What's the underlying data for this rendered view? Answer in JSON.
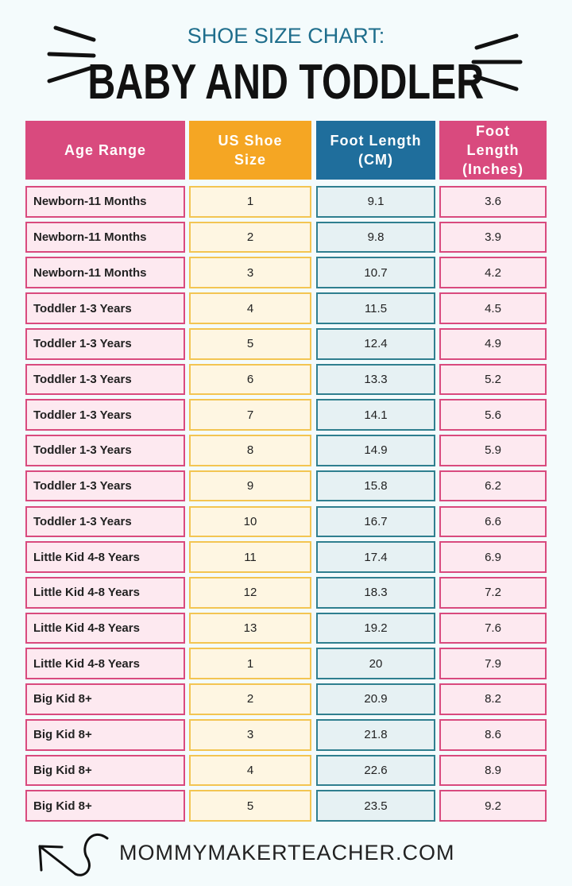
{
  "header": {
    "subtitle": "SHOE SIZE CHART:",
    "title": "BABY AND TODDLER"
  },
  "table": {
    "columns": [
      "Age Range",
      "US Shoe Size",
      "Foot Length (CM)",
      "Foot Length (Inches)"
    ],
    "rows": [
      [
        "Newborn-11 Months",
        1,
        9.1,
        3.6
      ],
      [
        "Newborn-11 Months",
        2,
        9.8,
        3.9
      ],
      [
        "Newborn-11 Months",
        3,
        10.7,
        4.2
      ],
      [
        "Toddler 1-3 Years",
        4,
        11.5,
        4.5
      ],
      [
        "Toddler 1-3 Years",
        5,
        12.4,
        4.9
      ],
      [
        "Toddler 1-3 Years",
        6,
        13.3,
        5.2
      ],
      [
        "Toddler 1-3 Years",
        7,
        14.1,
        5.6
      ],
      [
        "Toddler 1-3 Years",
        8,
        14.9,
        5.9
      ],
      [
        "Toddler 1-3 Years",
        9,
        15.8,
        6.2
      ],
      [
        "Toddler 1-3 Years",
        10,
        16.7,
        6.6
      ],
      [
        "Little Kid 4-8 Years",
        11,
        17.4,
        6.9
      ],
      [
        "Little Kid 4-8 Years",
        12,
        18.3,
        7.2
      ],
      [
        "Little Kid 4-8 Years",
        13,
        19.2,
        7.6
      ],
      [
        "Little Kid 4-8 Years",
        1,
        20,
        7.9
      ],
      [
        "Big Kid 8+",
        2,
        20.9,
        8.2
      ],
      [
        "Big Kid 8+",
        3,
        21.8,
        8.6
      ],
      [
        "Big Kid 8+",
        4,
        22.6,
        8.9
      ],
      [
        "Big Kid 8+",
        5,
        23.5,
        9.2
      ]
    ]
  },
  "footer": {
    "site": "MOMMYMAKERTEACHER.COM"
  }
}
